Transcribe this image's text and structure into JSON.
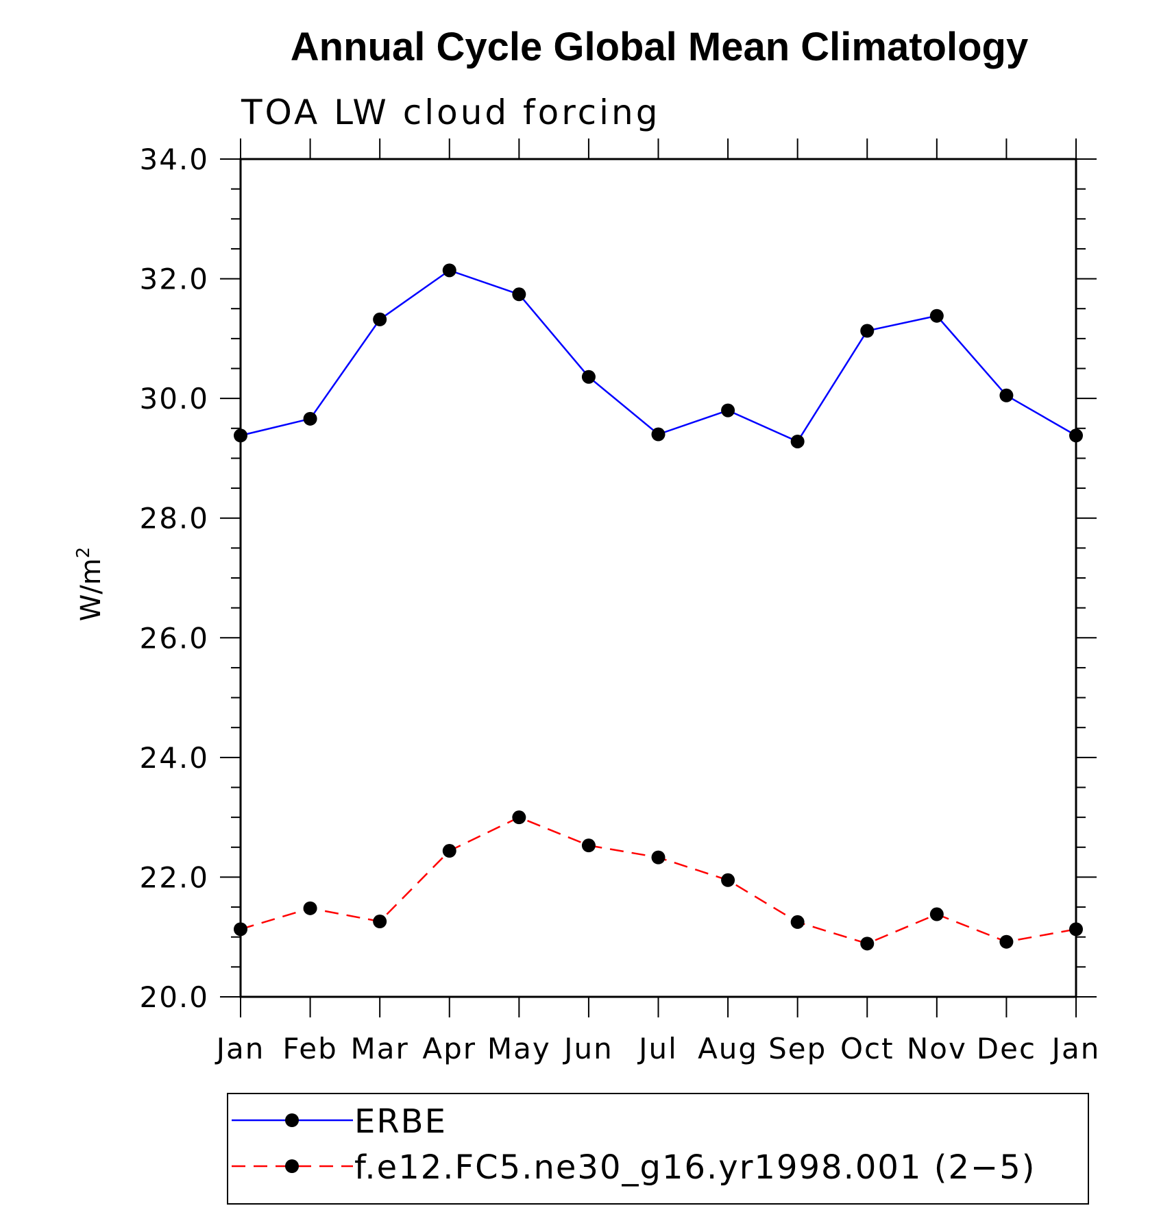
{
  "chart_data": {
    "type": "line",
    "title": "Annual Cycle Global Mean Climatology",
    "subtitle": "TOA LW cloud forcing",
    "ylabel": "W/m",
    "ylabel_sup": "2",
    "xlabel": "",
    "categories": [
      "Jan",
      "Feb",
      "Mar",
      "Apr",
      "May",
      "Jun",
      "Jul",
      "Aug",
      "Sep",
      "Oct",
      "Nov",
      "Dec",
      "Jan"
    ],
    "ylim": [
      20.0,
      34.0
    ],
    "yticks": [
      "20.0",
      "22.0",
      "24.0",
      "26.0",
      "28.0",
      "30.0",
      "32.0",
      "34.0"
    ],
    "grid": false,
    "legend_position": "bottom",
    "series": [
      {
        "name": "ERBE",
        "color": "#0000ff",
        "dash": "solid",
        "marker": "filled-circle",
        "values": [
          29.38,
          29.66,
          31.32,
          32.14,
          31.74,
          30.36,
          29.4,
          29.8,
          29.28,
          31.13,
          31.38,
          30.05,
          29.38
        ]
      },
      {
        "name": "f.e12.FC5.ne30_g16.yr1998.001 (2−5)",
        "color": "#ff0000",
        "dash": "dashed",
        "marker": "filled-circle",
        "values": [
          21.13,
          21.48,
          21.26,
          22.44,
          23.0,
          22.53,
          22.33,
          21.95,
          21.25,
          20.89,
          21.38,
          20.92,
          21.13
        ]
      }
    ]
  }
}
